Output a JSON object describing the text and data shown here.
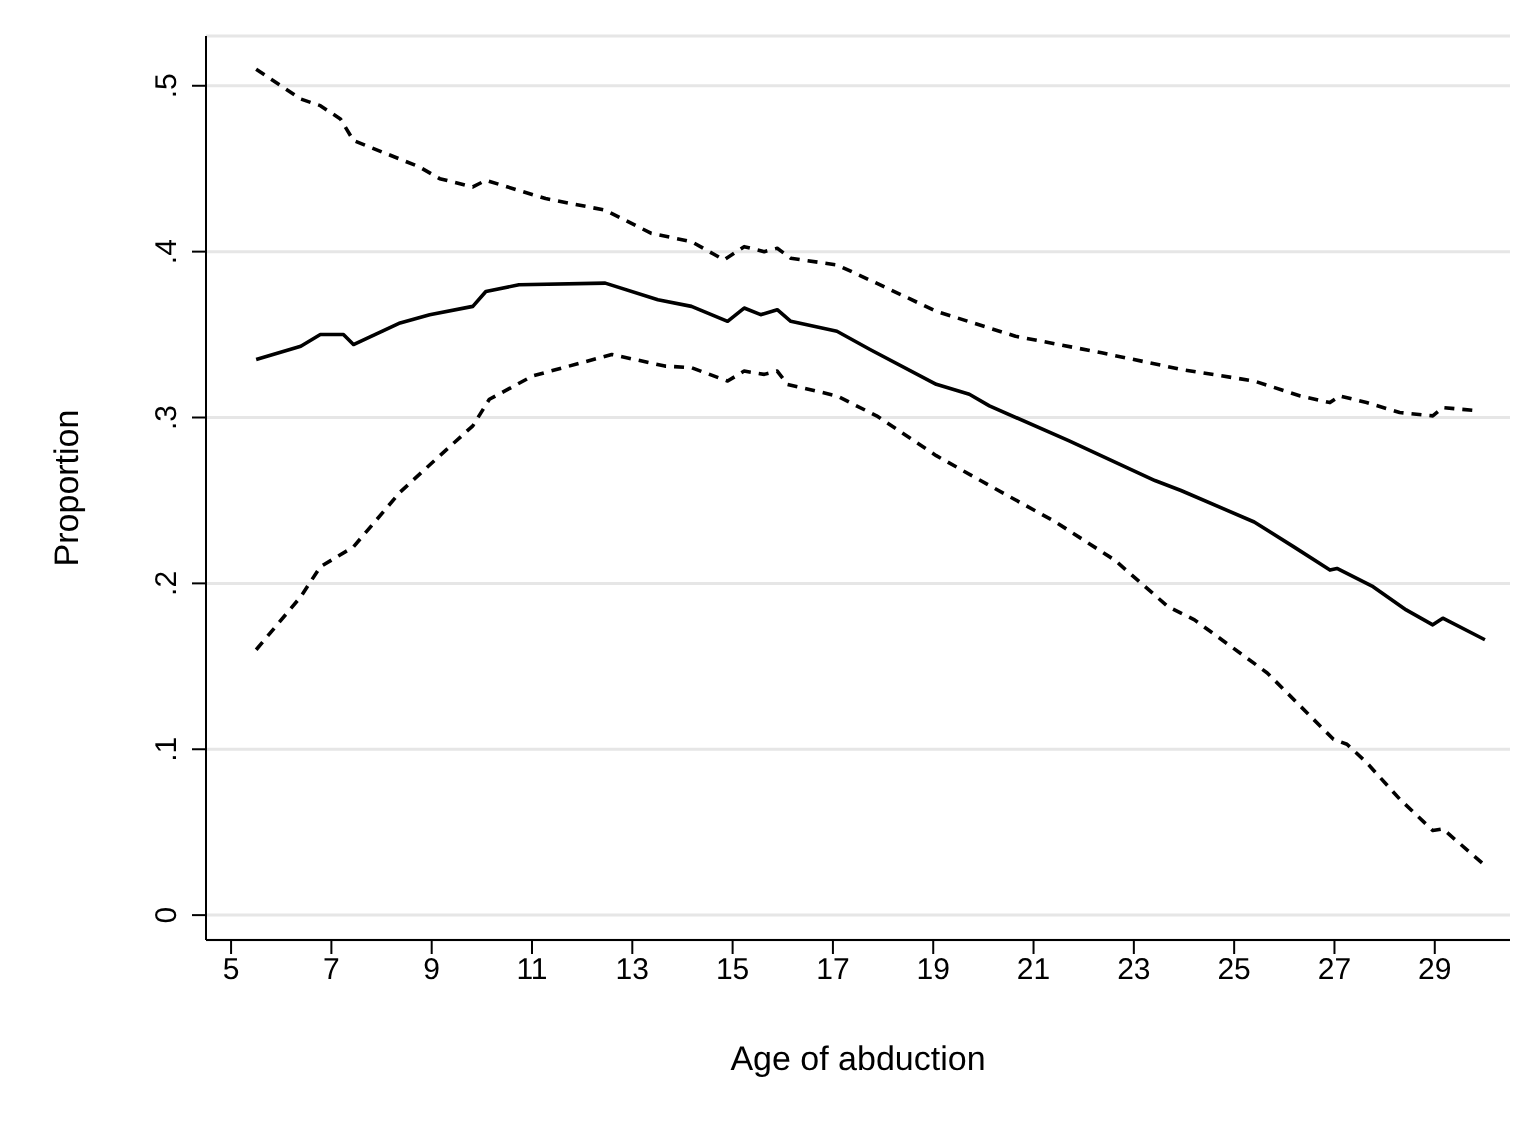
{
  "chart_data": {
    "type": "line",
    "xlabel": "Age of abduction",
    "ylabel": "Proportion",
    "xlim": [
      4.5,
      30.5
    ],
    "xticks": [
      5,
      7,
      9,
      11,
      13,
      15,
      17,
      19,
      21,
      23,
      25,
      27,
      29
    ],
    "ylim": [
      -0.015,
      0.53
    ],
    "yticks": [
      {
        "value": 0,
        "label": "0"
      },
      {
        "value": 0.1,
        "label": ".1"
      },
      {
        "value": 0.2,
        "label": ".2"
      },
      {
        "value": 0.3,
        "label": ".3"
      },
      {
        "value": 0.4,
        "label": ".4"
      },
      {
        "value": 0.5,
        "label": ".5"
      }
    ],
    "grid": "y",
    "series": [
      {
        "color": "#000000",
        "line_style": "solid",
        "x": [
          5.5,
          6.39,
          6.78,
          7.24,
          7.44,
          8.37,
          8.96,
          9.82,
          10.08,
          10.74,
          12.46,
          13.51,
          14.18,
          14.9,
          15.23,
          15.56,
          15.89,
          16.16,
          17.08,
          17.74,
          19.06,
          19.72,
          20.12,
          21.7,
          23.42,
          23.94,
          25.4,
          26.19,
          26.91,
          27.05,
          27.77,
          28.43,
          28.96,
          29.16,
          30.0
        ],
        "values": [
          0.335,
          0.343,
          0.35,
          0.35,
          0.344,
          0.357,
          0.362,
          0.367,
          0.376,
          0.38,
          0.381,
          0.371,
          0.367,
          0.358,
          0.366,
          0.362,
          0.365,
          0.358,
          0.352,
          0.341,
          0.32,
          0.314,
          0.307,
          0.286,
          0.262,
          0.256,
          0.237,
          0.222,
          0.208,
          0.209,
          0.198,
          0.184,
          0.175,
          0.179,
          0.166
        ]
      },
      {
        "color": "#000000",
        "line_style": "dashed",
        "x": [
          5.5,
          6.39,
          6.78,
          7.18,
          7.44,
          8.76,
          9.16,
          9.82,
          10.08,
          11.27,
          12.46,
          13.38,
          14.18,
          14.83,
          15.23,
          15.63,
          15.89,
          16.16,
          17.08,
          17.87,
          19.06,
          20.64,
          22.36,
          23.94,
          25.4,
          26.32,
          26.91,
          27.11,
          27.64,
          28.3,
          28.96,
          29.16,
          29.88
        ],
        "values": [
          0.51,
          0.492,
          0.488,
          0.48,
          0.467,
          0.451,
          0.444,
          0.439,
          0.443,
          0.432,
          0.425,
          0.411,
          0.406,
          0.395,
          0.403,
          0.4,
          0.402,
          0.396,
          0.392,
          0.381,
          0.364,
          0.349,
          0.339,
          0.329,
          0.322,
          0.313,
          0.309,
          0.313,
          0.309,
          0.303,
          0.301,
          0.306,
          0.304
        ]
      },
      {
        "color": "#000000",
        "line_style": "dashed",
        "x": [
          5.5,
          6.39,
          6.78,
          7.44,
          8.37,
          9.09,
          9.82,
          10.15,
          11.01,
          12.59,
          13.65,
          14.18,
          14.9,
          15.23,
          15.63,
          15.89,
          16.09,
          17.08,
          17.87,
          19.06,
          20.12,
          21.44,
          22.62,
          23.68,
          24.21,
          25.66,
          26.32,
          26.98,
          27.25,
          27.64,
          28.3,
          28.96,
          29.16,
          30.0
        ],
        "values": [
          0.16,
          0.192,
          0.21,
          0.222,
          0.255,
          0.275,
          0.295,
          0.311,
          0.325,
          0.338,
          0.331,
          0.33,
          0.322,
          0.328,
          0.326,
          0.328,
          0.32,
          0.313,
          0.301,
          0.277,
          0.259,
          0.237,
          0.214,
          0.186,
          0.178,
          0.146,
          0.126,
          0.106,
          0.103,
          0.092,
          0.07,
          0.051,
          0.052,
          0.03
        ]
      }
    ]
  }
}
